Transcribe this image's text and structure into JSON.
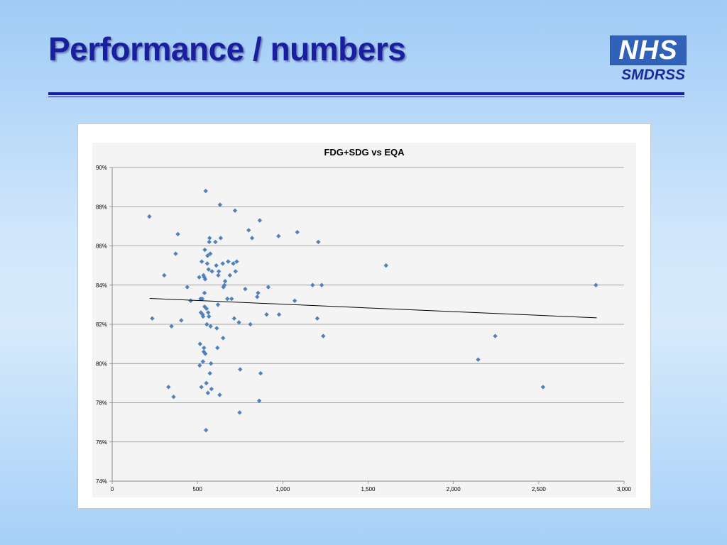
{
  "slide": {
    "title": "Performance / numbers",
    "logo_text": "NHS",
    "logo_subtext": "SMDRSS"
  },
  "colors": {
    "title": "#1a1fa0",
    "logo_blue": "#2f62b8",
    "points": "#4f81bd",
    "trendline": "#000000"
  },
  "chart_data": {
    "type": "scatter",
    "title": "FDG+SDG vs EQA",
    "xlabel": "",
    "ylabel": "",
    "xlim": [
      0,
      3000
    ],
    "ylim": [
      0.74,
      0.9
    ],
    "x_ticks": [
      0,
      500,
      1000,
      1500,
      2000,
      2500,
      3000
    ],
    "x_tick_labels": [
      "0",
      "500",
      "1,000",
      "1,500",
      "2,000",
      "2,500",
      "3,000"
    ],
    "y_ticks": [
      0.74,
      0.76,
      0.78,
      0.8,
      0.82,
      0.84,
      0.86,
      0.88,
      0.9
    ],
    "y_tick_labels": [
      "74%",
      "76%",
      "78%",
      "80%",
      "82%",
      "84%",
      "86%",
      "88%",
      "90%"
    ],
    "grid": true,
    "legend": "none",
    "trendline": {
      "type": "linear",
      "x": [
        220,
        2840
      ],
      "y": [
        0.8332,
        0.8233
      ]
    },
    "points": [
      [
        218,
        0.875
      ],
      [
        235,
        0.823
      ],
      [
        305,
        0.845
      ],
      [
        330,
        0.788
      ],
      [
        348,
        0.819
      ],
      [
        360,
        0.783
      ],
      [
        372,
        0.856
      ],
      [
        385,
        0.866
      ],
      [
        405,
        0.822
      ],
      [
        440,
        0.839
      ],
      [
        460,
        0.832
      ],
      [
        510,
        0.844
      ],
      [
        513,
        0.799
      ],
      [
        515,
        0.81
      ],
      [
        518,
        0.833
      ],
      [
        520,
        0.826
      ],
      [
        523,
        0.788
      ],
      [
        525,
        0.852
      ],
      [
        528,
        0.833
      ],
      [
        530,
        0.825
      ],
      [
        532,
        0.801
      ],
      [
        533,
        0.824
      ],
      [
        535,
        0.845
      ],
      [
        537,
        0.806
      ],
      [
        538,
        0.808
      ],
      [
        540,
        0.844
      ],
      [
        541,
        0.836
      ],
      [
        542,
        0.829
      ],
      [
        543,
        0.858
      ],
      [
        545,
        0.843
      ],
      [
        546,
        0.805
      ],
      [
        548,
        0.888
      ],
      [
        550,
        0.766
      ],
      [
        552,
        0.79
      ],
      [
        553,
        0.828
      ],
      [
        555,
        0.82
      ],
      [
        557,
        0.851
      ],
      [
        559,
        0.855
      ],
      [
        561,
        0.785
      ],
      [
        563,
        0.826
      ],
      [
        565,
        0.848
      ],
      [
        567,
        0.824
      ],
      [
        569,
        0.862
      ],
      [
        571,
        0.864
      ],
      [
        573,
        0.795
      ],
      [
        575,
        0.856
      ],
      [
        577,
        0.819
      ],
      [
        579,
        0.8
      ],
      [
        582,
        0.787
      ],
      [
        585,
        0.847
      ],
      [
        605,
        0.862
      ],
      [
        610,
        0.85
      ],
      [
        613,
        0.818
      ],
      [
        617,
        0.808
      ],
      [
        620,
        0.83
      ],
      [
        622,
        0.845
      ],
      [
        625,
        0.847
      ],
      [
        630,
        0.784
      ],
      [
        632,
        0.881
      ],
      [
        636,
        0.864
      ],
      [
        648,
        0.851
      ],
      [
        650,
        0.813
      ],
      [
        652,
        0.839
      ],
      [
        658,
        0.84
      ],
      [
        662,
        0.842
      ],
      [
        675,
        0.833
      ],
      [
        680,
        0.852
      ],
      [
        690,
        0.845
      ],
      [
        700,
        0.833
      ],
      [
        710,
        0.851
      ],
      [
        715,
        0.823
      ],
      [
        720,
        0.878
      ],
      [
        723,
        0.847
      ],
      [
        730,
        0.852
      ],
      [
        743,
        0.821
      ],
      [
        747,
        0.775
      ],
      [
        750,
        0.797
      ],
      [
        780,
        0.838
      ],
      [
        800,
        0.868
      ],
      [
        810,
        0.82
      ],
      [
        820,
        0.864
      ],
      [
        850,
        0.834
      ],
      [
        855,
        0.836
      ],
      [
        862,
        0.781
      ],
      [
        865,
        0.873
      ],
      [
        870,
        0.795
      ],
      [
        905,
        0.825
      ],
      [
        915,
        0.839
      ],
      [
        975,
        0.865
      ],
      [
        978,
        0.825
      ],
      [
        1070,
        0.832
      ],
      [
        1085,
        0.867
      ],
      [
        1175,
        0.84
      ],
      [
        1202,
        0.823
      ],
      [
        1208,
        0.862
      ],
      [
        1228,
        0.84
      ],
      [
        1237,
        0.814
      ],
      [
        1605,
        0.85
      ],
      [
        2145,
        0.802
      ],
      [
        2245,
        0.814
      ],
      [
        2525,
        0.788
      ],
      [
        2835,
        0.84
      ]
    ]
  }
}
